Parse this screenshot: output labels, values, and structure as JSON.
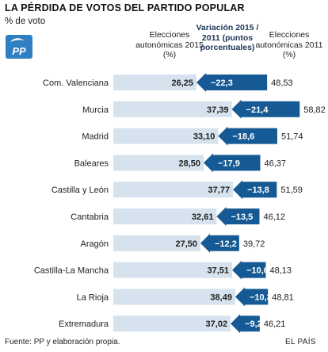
{
  "header": {
    "title": "LA PÉRDIDA DE VOTOS DEL PARTIDO POPULAR",
    "subtitle": "% de voto",
    "logo_text": "PP"
  },
  "columns": {
    "col_2015": "Elecciones autonómicas 2015 (%)",
    "col_var": "Variación 2015 / 2011 (puntos porcentuales)",
    "col_2011": "Elecciones autonómicas 2011 (%)"
  },
  "footer": {
    "source": "Fuente: PP y elaboración propia.",
    "brand": "EL PAÍS"
  },
  "colors": {
    "bar_2015": "#d6e3ee",
    "arrow": "#155a94",
    "bar_2011": "#155a94",
    "logo": "#2f7fc1"
  },
  "chart_data": {
    "type": "bar",
    "categories": [
      "Com. Valenciana",
      "Murcia",
      "Madrid",
      "Baleares",
      "Castilla y León",
      "Cantabria",
      "Aragón",
      "Castilla-La Mancha",
      "La Rioja",
      "Extremadura"
    ],
    "series": [
      {
        "name": "Elecciones autonómicas 2015 (%)",
        "values": [
          26.25,
          37.39,
          33.1,
          28.5,
          37.77,
          32.61,
          27.5,
          37.51,
          38.49,
          37.02
        ],
        "labels": [
          "26,25",
          "37,39",
          "33,10",
          "28,50",
          "37,77",
          "32,61",
          "27,50",
          "37,51",
          "38,49",
          "37,02"
        ]
      },
      {
        "name": "Variación 2015 / 2011 (puntos porcentuales)",
        "values": [
          -22.3,
          -21.4,
          -18.6,
          -17.9,
          -13.8,
          -13.5,
          -12.2,
          -10.6,
          -10.3,
          -9.2
        ],
        "labels": [
          "−22,3",
          "−21,4",
          "−18,6",
          "−17,9",
          "−13,8",
          "−13,5",
          "−12,2",
          "−10,6",
          "−10,3",
          "−9,2"
        ]
      },
      {
        "name": "Elecciones autonómicas 2011 (%)",
        "values": [
          48.53,
          58.82,
          51.74,
          46.37,
          51.59,
          46.12,
          39.72,
          48.13,
          48.81,
          46.21
        ],
        "labels": [
          "48,53",
          "58,82",
          "51,74",
          "46,37",
          "51,59",
          "46,12",
          "39,72",
          "48,13",
          "48,81",
          "46,21"
        ]
      }
    ],
    "xlim": [
      0,
      58.82
    ]
  }
}
